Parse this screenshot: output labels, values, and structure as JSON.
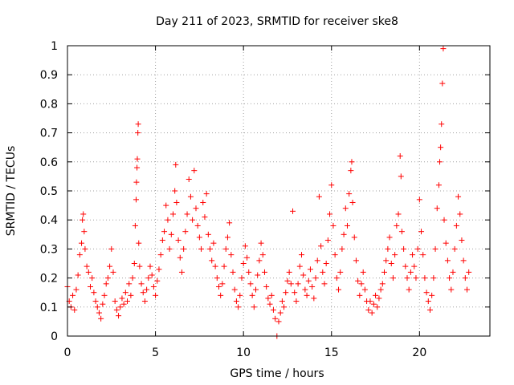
{
  "chart_data": {
    "type": "scatter",
    "title": "Day 211 of 2023, SRMTID for receiver ske8",
    "xlabel": "GPS time / hours",
    "ylabel": "SRMTID / TECUs",
    "xlim": [
      0,
      24
    ],
    "ylim": [
      0,
      1
    ],
    "x_ticks": [
      0,
      5,
      10,
      15,
      20
    ],
    "x_tick_labels": [
      "0",
      "5",
      "10",
      "15",
      "20"
    ],
    "y_ticks": [
      0,
      0.1,
      0.2,
      0.3,
      0.4,
      0.5,
      0.6,
      0.7,
      0.8,
      0.9,
      1
    ],
    "y_tick_labels": [
      "0",
      "0.1",
      "0.2",
      "0.3",
      "0.4",
      "0.5",
      "0.6",
      "0.7",
      "0.8",
      "0.9",
      "1"
    ],
    "grid": true,
    "marker": "+",
    "marker_color": "#ff0000",
    "series": [
      {
        "name": "SRMTID",
        "points": [
          [
            0.0,
            0.17
          ],
          [
            0.1,
            0.12
          ],
          [
            0.2,
            0.1
          ],
          [
            0.3,
            0.14
          ],
          [
            0.4,
            0.09
          ],
          [
            0.5,
            0.16
          ],
          [
            0.6,
            0.21
          ],
          [
            0.7,
            0.28
          ],
          [
            0.8,
            0.32
          ],
          [
            0.85,
            0.4
          ],
          [
            0.9,
            0.42
          ],
          [
            0.95,
            0.36
          ],
          [
            1.0,
            0.3
          ],
          [
            1.1,
            0.24
          ],
          [
            1.2,
            0.22
          ],
          [
            1.3,
            0.17
          ],
          [
            1.4,
            0.2
          ],
          [
            1.5,
            0.15
          ],
          [
            1.6,
            0.12
          ],
          [
            1.7,
            0.1
          ],
          [
            1.8,
            0.08
          ],
          [
            1.9,
            0.06
          ],
          [
            2.0,
            0.11
          ],
          [
            2.1,
            0.14
          ],
          [
            2.2,
            0.18
          ],
          [
            2.3,
            0.2
          ],
          [
            2.4,
            0.24
          ],
          [
            2.5,
            0.3
          ],
          [
            2.6,
            0.22
          ],
          [
            2.7,
            0.12
          ],
          [
            2.8,
            0.09
          ],
          [
            2.9,
            0.07
          ],
          [
            3.0,
            0.1
          ],
          [
            3.1,
            0.13
          ],
          [
            3.2,
            0.11
          ],
          [
            3.3,
            0.15
          ],
          [
            3.4,
            0.12
          ],
          [
            3.5,
            0.18
          ],
          [
            3.6,
            0.14
          ],
          [
            3.7,
            0.2
          ],
          [
            3.8,
            0.25
          ],
          [
            3.85,
            0.38
          ],
          [
            3.9,
            0.47
          ],
          [
            3.92,
            0.53
          ],
          [
            3.95,
            0.58
          ],
          [
            3.97,
            0.61
          ],
          [
            4.0,
            0.7
          ],
          [
            4.02,
            0.73
          ],
          [
            4.05,
            0.32
          ],
          [
            4.1,
            0.24
          ],
          [
            4.2,
            0.18
          ],
          [
            4.3,
            0.15
          ],
          [
            4.4,
            0.12
          ],
          [
            4.5,
            0.16
          ],
          [
            4.6,
            0.2
          ],
          [
            4.7,
            0.24
          ],
          [
            4.8,
            0.21
          ],
          [
            4.9,
            0.17
          ],
          [
            5.0,
            0.14
          ],
          [
            5.1,
            0.19
          ],
          [
            5.2,
            0.23
          ],
          [
            5.3,
            0.28
          ],
          [
            5.4,
            0.33
          ],
          [
            5.5,
            0.36
          ],
          [
            5.6,
            0.45
          ],
          [
            5.7,
            0.4
          ],
          [
            5.8,
            0.3
          ],
          [
            5.9,
            0.35
          ],
          [
            6.0,
            0.42
          ],
          [
            6.1,
            0.5
          ],
          [
            6.15,
            0.59
          ],
          [
            6.2,
            0.46
          ],
          [
            6.3,
            0.33
          ],
          [
            6.4,
            0.27
          ],
          [
            6.5,
            0.22
          ],
          [
            6.6,
            0.3
          ],
          [
            6.7,
            0.36
          ],
          [
            6.8,
            0.42
          ],
          [
            6.9,
            0.54
          ],
          [
            7.0,
            0.48
          ],
          [
            7.1,
            0.4
          ],
          [
            7.2,
            0.57
          ],
          [
            7.3,
            0.44
          ],
          [
            7.4,
            0.38
          ],
          [
            7.5,
            0.34
          ],
          [
            7.6,
            0.3
          ],
          [
            7.7,
            0.46
          ],
          [
            7.8,
            0.41
          ],
          [
            7.9,
            0.49
          ],
          [
            8.0,
            0.35
          ],
          [
            8.1,
            0.3
          ],
          [
            8.2,
            0.26
          ],
          [
            8.3,
            0.32
          ],
          [
            8.4,
            0.24
          ],
          [
            8.5,
            0.2
          ],
          [
            8.6,
            0.17
          ],
          [
            8.7,
            0.14
          ],
          [
            8.8,
            0.18
          ],
          [
            8.9,
            0.24
          ],
          [
            9.0,
            0.3
          ],
          [
            9.1,
            0.34
          ],
          [
            9.2,
            0.39
          ],
          [
            9.3,
            0.28
          ],
          [
            9.4,
            0.22
          ],
          [
            9.5,
            0.16
          ],
          [
            9.6,
            0.12
          ],
          [
            9.7,
            0.1
          ],
          [
            9.8,
            0.14
          ],
          [
            9.9,
            0.2
          ],
          [
            10.0,
            0.25
          ],
          [
            10.1,
            0.31
          ],
          [
            10.2,
            0.27
          ],
          [
            10.3,
            0.22
          ],
          [
            10.4,
            0.18
          ],
          [
            10.5,
            0.14
          ],
          [
            10.6,
            0.1
          ],
          [
            10.7,
            0.16
          ],
          [
            10.8,
            0.21
          ],
          [
            10.9,
            0.26
          ],
          [
            11.0,
            0.32
          ],
          [
            11.1,
            0.28
          ],
          [
            11.2,
            0.22
          ],
          [
            11.3,
            0.17
          ],
          [
            11.4,
            0.13
          ],
          [
            11.5,
            0.11
          ],
          [
            11.6,
            0.14
          ],
          [
            11.7,
            0.09
          ],
          [
            11.8,
            0.06
          ],
          [
            11.9,
            0.0
          ],
          [
            12.0,
            0.05
          ],
          [
            12.1,
            0.08
          ],
          [
            12.2,
            0.12
          ],
          [
            12.3,
            0.1
          ],
          [
            12.4,
            0.15
          ],
          [
            12.5,
            0.19
          ],
          [
            12.6,
            0.22
          ],
          [
            12.7,
            0.18
          ],
          [
            12.8,
            0.43
          ],
          [
            12.9,
            0.15
          ],
          [
            13.0,
            0.12
          ],
          [
            13.1,
            0.18
          ],
          [
            13.2,
            0.24
          ],
          [
            13.3,
            0.28
          ],
          [
            13.4,
            0.21
          ],
          [
            13.5,
            0.16
          ],
          [
            13.6,
            0.14
          ],
          [
            13.7,
            0.19
          ],
          [
            13.8,
            0.23
          ],
          [
            13.9,
            0.17
          ],
          [
            14.0,
            0.13
          ],
          [
            14.1,
            0.2
          ],
          [
            14.2,
            0.26
          ],
          [
            14.3,
            0.48
          ],
          [
            14.4,
            0.31
          ],
          [
            14.5,
            0.22
          ],
          [
            14.6,
            0.18
          ],
          [
            14.7,
            0.25
          ],
          [
            14.8,
            0.33
          ],
          [
            14.9,
            0.42
          ],
          [
            15.0,
            0.52
          ],
          [
            15.1,
            0.38
          ],
          [
            15.2,
            0.28
          ],
          [
            15.3,
            0.2
          ],
          [
            15.4,
            0.16
          ],
          [
            15.5,
            0.22
          ],
          [
            15.6,
            0.3
          ],
          [
            15.7,
            0.35
          ],
          [
            15.8,
            0.44
          ],
          [
            15.9,
            0.38
          ],
          [
            16.0,
            0.49
          ],
          [
            16.1,
            0.57
          ],
          [
            16.15,
            0.6
          ],
          [
            16.2,
            0.46
          ],
          [
            16.3,
            0.34
          ],
          [
            16.4,
            0.26
          ],
          [
            16.5,
            0.19
          ],
          [
            16.6,
            0.14
          ],
          [
            16.7,
            0.18
          ],
          [
            16.8,
            0.22
          ],
          [
            16.9,
            0.16
          ],
          [
            17.0,
            0.12
          ],
          [
            17.1,
            0.09
          ],
          [
            17.2,
            0.12
          ],
          [
            17.3,
            0.08
          ],
          [
            17.4,
            0.11
          ],
          [
            17.5,
            0.14
          ],
          [
            17.6,
            0.1
          ],
          [
            17.7,
            0.13
          ],
          [
            17.8,
            0.16
          ],
          [
            17.9,
            0.18
          ],
          [
            18.0,
            0.22
          ],
          [
            18.1,
            0.26
          ],
          [
            18.2,
            0.3
          ],
          [
            18.3,
            0.34
          ],
          [
            18.4,
            0.25
          ],
          [
            18.5,
            0.2
          ],
          [
            18.6,
            0.28
          ],
          [
            18.7,
            0.38
          ],
          [
            18.8,
            0.42
          ],
          [
            18.9,
            0.62
          ],
          [
            18.95,
            0.55
          ],
          [
            19.0,
            0.36
          ],
          [
            19.1,
            0.3
          ],
          [
            19.2,
            0.24
          ],
          [
            19.3,
            0.2
          ],
          [
            19.4,
            0.16
          ],
          [
            19.5,
            0.22
          ],
          [
            19.6,
            0.28
          ],
          [
            19.7,
            0.24
          ],
          [
            19.8,
            0.2
          ],
          [
            19.9,
            0.3
          ],
          [
            20.0,
            0.47
          ],
          [
            20.1,
            0.36
          ],
          [
            20.2,
            0.28
          ],
          [
            20.3,
            0.2
          ],
          [
            20.4,
            0.15
          ],
          [
            20.5,
            0.12
          ],
          [
            20.6,
            0.09
          ],
          [
            20.7,
            0.14
          ],
          [
            20.8,
            0.2
          ],
          [
            20.9,
            0.3
          ],
          [
            21.0,
            0.44
          ],
          [
            21.1,
            0.52
          ],
          [
            21.15,
            0.6
          ],
          [
            21.2,
            0.65
          ],
          [
            21.25,
            0.73
          ],
          [
            21.3,
            0.87
          ],
          [
            21.35,
            0.99
          ],
          [
            21.4,
            0.4
          ],
          [
            21.5,
            0.32
          ],
          [
            21.6,
            0.26
          ],
          [
            21.7,
            0.2
          ],
          [
            21.8,
            0.16
          ],
          [
            21.9,
            0.22
          ],
          [
            22.0,
            0.3
          ],
          [
            22.1,
            0.38
          ],
          [
            22.2,
            0.48
          ],
          [
            22.3,
            0.42
          ],
          [
            22.4,
            0.33
          ],
          [
            22.5,
            0.26
          ],
          [
            22.6,
            0.2
          ],
          [
            22.7,
            0.16
          ],
          [
            22.8,
            0.22
          ]
        ]
      }
    ]
  }
}
